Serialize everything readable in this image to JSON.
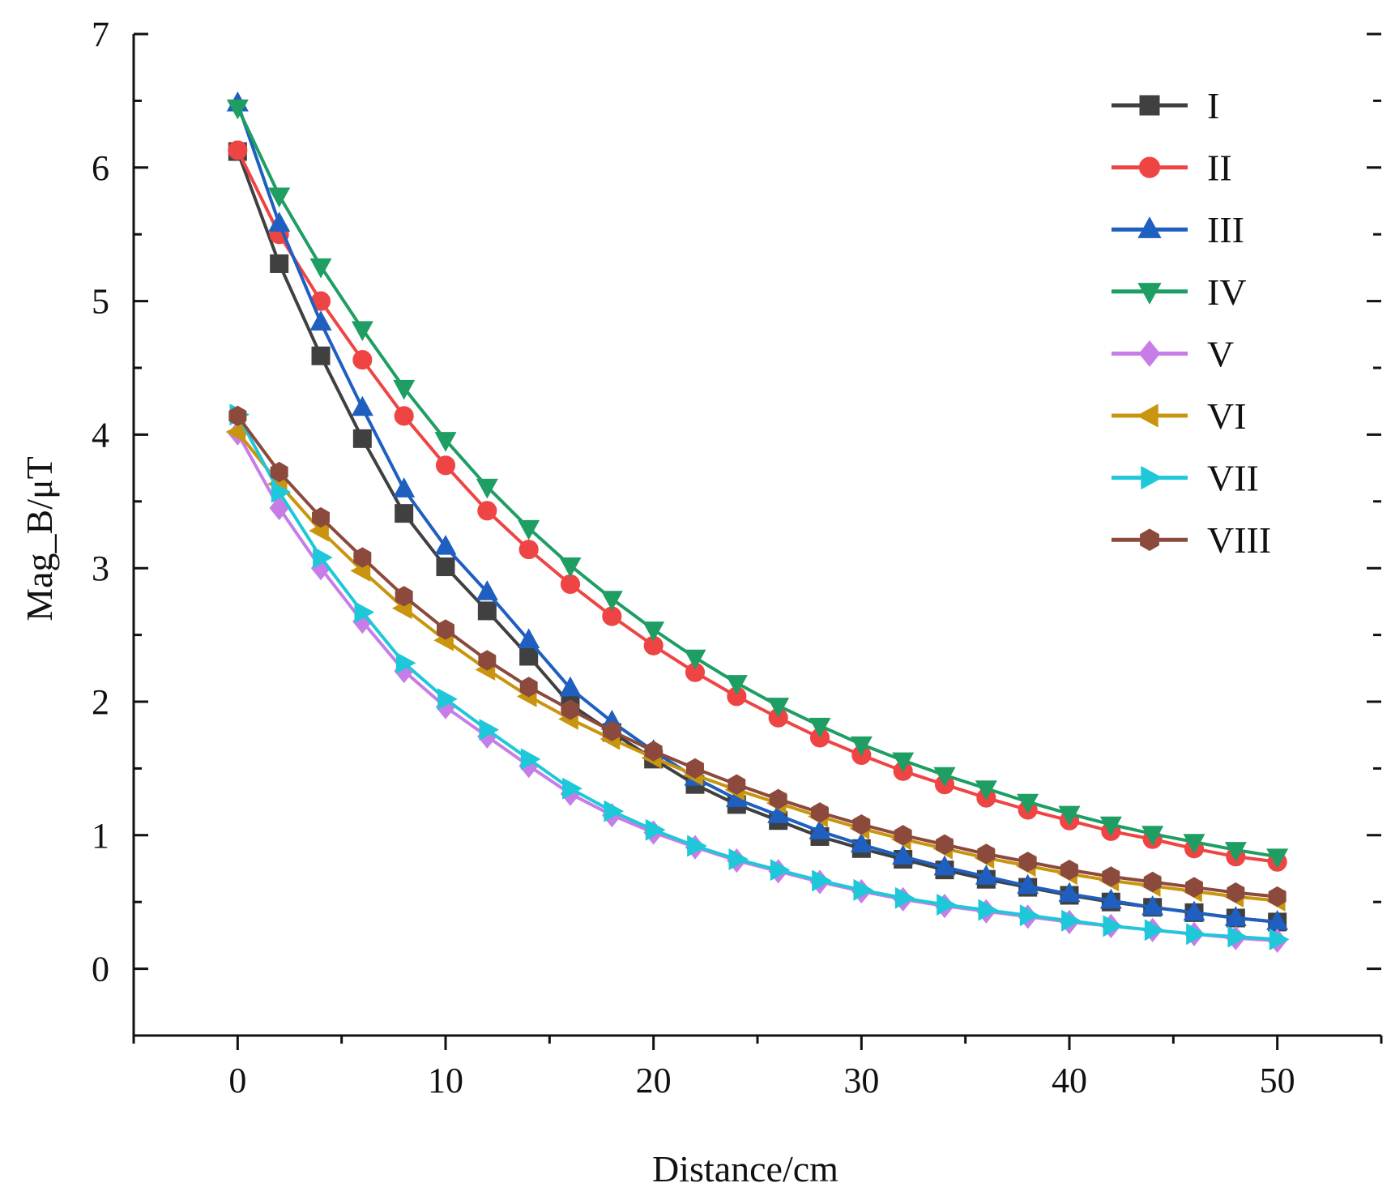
{
  "chart_data": {
    "type": "line",
    "title": "",
    "xlabel": "Distance/cm",
    "ylabel": "Mag_B/μT",
    "xlim": [
      -5,
      55
    ],
    "ylim": [
      -0.5,
      7
    ],
    "xticks": [
      0,
      10,
      20,
      30,
      40,
      50
    ],
    "yticks": [
      0,
      1,
      2,
      3,
      4,
      5,
      6,
      7
    ],
    "grid": false,
    "legend_position": "top-right",
    "x": [
      0,
      2,
      4,
      6,
      8,
      10,
      12,
      14,
      16,
      18,
      20,
      22,
      24,
      26,
      28,
      30,
      32,
      34,
      36,
      38,
      40,
      42,
      44,
      46,
      48,
      50
    ],
    "series": [
      {
        "name": "I",
        "color": "#404040",
        "marker": "square",
        "values": [
          6.12,
          5.28,
          4.59,
          3.97,
          3.41,
          3.01,
          2.68,
          2.34,
          1.98,
          1.77,
          1.57,
          1.38,
          1.23,
          1.11,
          0.99,
          0.9,
          0.82,
          0.74,
          0.67,
          0.61,
          0.55,
          0.5,
          0.46,
          0.42,
          0.38,
          0.35
        ]
      },
      {
        "name": "II",
        "color": "#ef4444",
        "marker": "circle",
        "values": [
          6.13,
          5.5,
          5.0,
          4.56,
          4.14,
          3.77,
          3.43,
          3.14,
          2.88,
          2.64,
          2.42,
          2.22,
          2.04,
          1.88,
          1.73,
          1.6,
          1.48,
          1.38,
          1.28,
          1.19,
          1.11,
          1.03,
          0.97,
          0.9,
          0.84,
          0.8
        ]
      },
      {
        "name": "III",
        "color": "#1f5fbf",
        "marker": "triangle-up",
        "values": [
          6.48,
          5.58,
          4.84,
          4.2,
          3.59,
          3.16,
          2.82,
          2.46,
          2.1,
          1.85,
          1.63,
          1.43,
          1.27,
          1.15,
          1.03,
          0.93,
          0.84,
          0.76,
          0.69,
          0.62,
          0.56,
          0.51,
          0.46,
          0.42,
          0.38,
          0.35
        ]
      },
      {
        "name": "IV",
        "color": "#1e9e63",
        "marker": "triangle-down",
        "values": [
          6.45,
          5.79,
          5.26,
          4.79,
          4.35,
          3.96,
          3.61,
          3.3,
          3.02,
          2.77,
          2.54,
          2.33,
          2.14,
          1.97,
          1.82,
          1.68,
          1.56,
          1.45,
          1.35,
          1.25,
          1.16,
          1.08,
          1.01,
          0.95,
          0.89,
          0.84
        ]
      },
      {
        "name": "V",
        "color": "#c77de8",
        "marker": "diamond",
        "values": [
          4.01,
          3.45,
          3.0,
          2.6,
          2.23,
          1.96,
          1.74,
          1.52,
          1.31,
          1.15,
          1.02,
          0.91,
          0.81,
          0.73,
          0.65,
          0.58,
          0.52,
          0.47,
          0.43,
          0.39,
          0.35,
          0.32,
          0.29,
          0.26,
          0.23,
          0.21
        ]
      },
      {
        "name": "VI",
        "color": "#c9950e",
        "marker": "triangle-left",
        "values": [
          4.02,
          3.63,
          3.28,
          2.98,
          2.7,
          2.46,
          2.24,
          2.04,
          1.87,
          1.72,
          1.58,
          1.45,
          1.34,
          1.24,
          1.14,
          1.05,
          0.97,
          0.9,
          0.83,
          0.77,
          0.71,
          0.66,
          0.62,
          0.58,
          0.54,
          0.51
        ]
      },
      {
        "name": "VII",
        "color": "#1ec8d8",
        "marker": "triangle-right",
        "values": [
          4.15,
          3.57,
          3.08,
          2.67,
          2.29,
          2.02,
          1.79,
          1.57,
          1.35,
          1.18,
          1.04,
          0.92,
          0.82,
          0.74,
          0.66,
          0.59,
          0.53,
          0.48,
          0.44,
          0.4,
          0.36,
          0.32,
          0.29,
          0.26,
          0.24,
          0.22
        ]
      },
      {
        "name": "VIII",
        "color": "#8b4a3c",
        "marker": "hexagon",
        "values": [
          4.14,
          3.72,
          3.38,
          3.08,
          2.79,
          2.54,
          2.31,
          2.11,
          1.94,
          1.78,
          1.63,
          1.5,
          1.38,
          1.27,
          1.17,
          1.08,
          1.0,
          0.93,
          0.86,
          0.8,
          0.74,
          0.69,
          0.65,
          0.61,
          0.57,
          0.54
        ]
      }
    ]
  }
}
